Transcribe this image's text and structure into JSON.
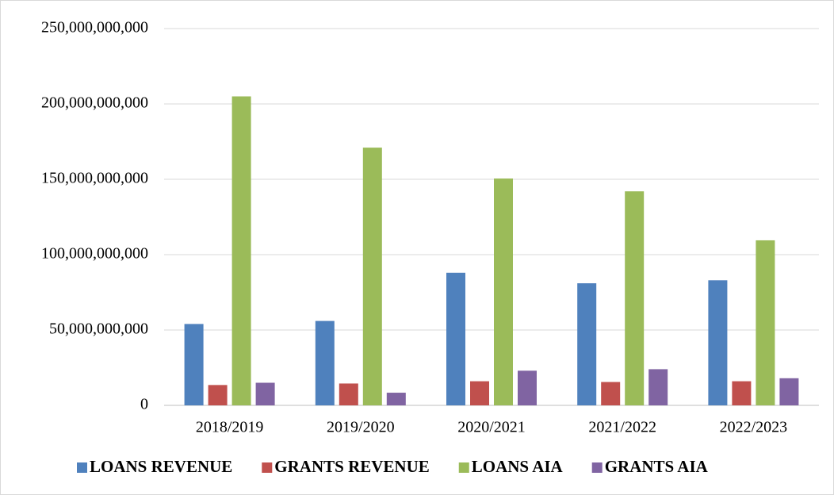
{
  "chart_data": {
    "type": "bar",
    "categories": [
      "2018/2019",
      "2019/2020",
      "2020/2021",
      "2021/2022",
      "2022/2023"
    ],
    "series": [
      {
        "name": "LOANS REVENUE",
        "color": "#4f81bd",
        "values": [
          54000000000,
          56000000000,
          88000000000,
          81000000000,
          83000000000
        ]
      },
      {
        "name": "GRANTS REVENUE",
        "color": "#c0504d",
        "values": [
          13500000000,
          14500000000,
          16000000000,
          15500000000,
          16000000000
        ]
      },
      {
        "name": "LOANS AIA",
        "color": "#9bbb59",
        "values": [
          205000000000,
          171000000000,
          150500000000,
          142000000000,
          109500000000
        ]
      },
      {
        "name": "GRANTS AIA",
        "color": "#8064a2",
        "values": [
          15000000000,
          8400000000,
          23000000000,
          24000000000,
          18000000000
        ]
      }
    ],
    "ylim": [
      0,
      250000000000
    ],
    "yticks": [
      0,
      {
        "value": 50000000000,
        "label": "50,000,000,000"
      },
      {
        "value": 100000000000,
        "label": "100,000,000,000"
      },
      {
        "value": 150000000000,
        "label": "150,000,000,000"
      },
      {
        "value": 200000000000,
        "label": "200,000,000,000"
      },
      {
        "value": 250000000000,
        "label": "250,000,000,000"
      }
    ],
    "grid": true,
    "legend": "bottom"
  }
}
